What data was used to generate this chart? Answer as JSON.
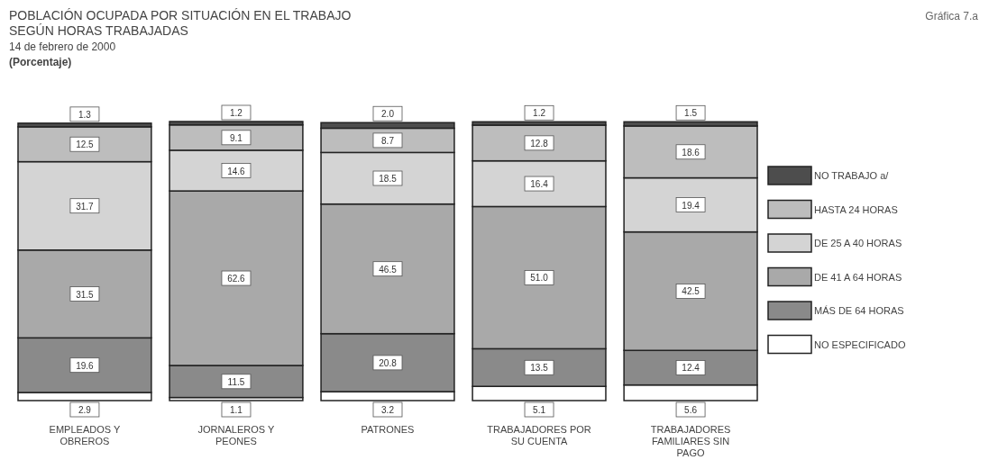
{
  "chart_data": {
    "type": "bar",
    "stacked": true,
    "title": "POBLACIÓN OCUPADA POR SITUACIÓN EN EL TRABAJO SEGÚN HORAS TRABAJADAS",
    "subtitle": "14 de febrero de 2000",
    "ylabel": "(Porcentaje)",
    "annotations": [
      "Gráfica 7.a"
    ],
    "categories": [
      "EMPLEADOS Y OBREROS",
      "JORNALEROS Y PEONES",
      "PATRONES",
      "TRABAJADORES POR SU CUENTA",
      "TRABAJADORES FAMILIARES SIN PAGO"
    ],
    "series": [
      {
        "name": "NO ESPECIFICADO",
        "color": "#ffffff",
        "values": [
          2.9,
          1.1,
          3.2,
          5.1,
          5.6
        ],
        "value_labels": [
          "2.9",
          "1.1",
          "3.2",
          "5.1",
          "5.6"
        ]
      },
      {
        "name": "MÁS DE 64 HORAS",
        "color": "#8a8a8a",
        "values": [
          19.6,
          11.5,
          20.8,
          13.5,
          12.4
        ],
        "value_labels": [
          "19.6",
          "11.5",
          "20.8",
          "13.5",
          "12.4"
        ]
      },
      {
        "name": "DE 41 A 64 HORAS",
        "color": "#a9a9a9",
        "values": [
          31.5,
          62.6,
          46.5,
          51.0,
          42.5
        ],
        "value_labels": [
          "31.5",
          "62.6",
          "46.5",
          "51.0",
          "42.5"
        ]
      },
      {
        "name": "DE 25 A 40 HORAS",
        "color": "#d4d4d4",
        "values": [
          31.7,
          14.6,
          18.5,
          16.4,
          19.4
        ],
        "value_labels": [
          "31.7",
          "14.6",
          "18.5",
          "16.4",
          "19.4"
        ]
      },
      {
        "name": "HASTA 24 HORAS",
        "color": "#bdbdbd",
        "values": [
          12.5,
          9.1,
          8.7,
          12.8,
          18.6
        ],
        "value_labels": [
          "12.5",
          "9.1",
          "8.7",
          "12.8",
          "18.6"
        ]
      },
      {
        "name": "NO TRABAJO a/",
        "color": "#4d4d4d",
        "values": [
          1.3,
          1.2,
          2.0,
          1.2,
          1.5
        ],
        "value_labels": [
          "1.3",
          "1.2",
          "2.0",
          "1.2",
          "1.5"
        ]
      }
    ],
    "legend": "right",
    "tick_labels": "x"
  }
}
